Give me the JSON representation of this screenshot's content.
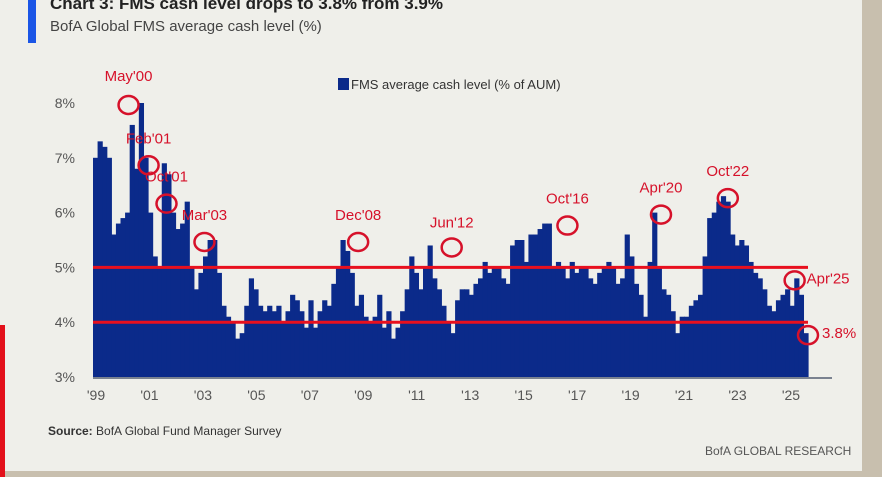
{
  "header": {
    "title": "Chart 3: FMS cash level drops to 3.8% from 3.9%",
    "subtitle": "BofA Global FMS average cash level (%)"
  },
  "footer": {
    "source_label": "Source:",
    "source_text": "BofA Global Fund Manager Survey",
    "brand": "BofA GLOBAL RESEARCH"
  },
  "colors": {
    "bar": "#0b2a8a",
    "reference_line": "#e8101e",
    "annotation": "#d6112a",
    "accent": "#1a55e6"
  },
  "chart_data": {
    "type": "bar",
    "title": "Chart 3: FMS cash level drops to 3.8% from 3.9%",
    "subtitle": "BofA Global FMS average cash level (%)",
    "xlabel": "",
    "ylabel": "",
    "ylim": [
      3,
      8.3
    ],
    "xlim": [
      1999.0,
      2025.75
    ],
    "grid": false,
    "legend": {
      "position": "top-center",
      "entries": [
        "FMS average cash level (% of AUM)"
      ]
    },
    "yticks": [
      3,
      4,
      5,
      6,
      7,
      8
    ],
    "ytick_labels": [
      "3%",
      "4%",
      "5%",
      "6%",
      "7%",
      "8%"
    ],
    "xticks": [
      1999,
      2001,
      2003,
      2005,
      2007,
      2009,
      2011,
      2013,
      2015,
      2017,
      2019,
      2021,
      2023,
      2025
    ],
    "xtick_labels": [
      "'99",
      "'01",
      "'03",
      "'05",
      "'07",
      "'09",
      "'11",
      "'13",
      "'15",
      "'17",
      "'19",
      "'21",
      "'23",
      "'25"
    ],
    "reference_lines": [
      5.0,
      4.0
    ],
    "series": [
      {
        "name": "FMS average cash level (% of AUM)",
        "start": 1999.0,
        "step_years": 0.1667,
        "values": [
          7.0,
          7.3,
          7.2,
          7.0,
          5.6,
          5.8,
          5.9,
          6.0,
          7.6,
          6.8,
          8.0,
          7.0,
          6.0,
          5.2,
          5.0,
          6.9,
          6.7,
          6.0,
          5.7,
          5.8,
          6.2,
          5.0,
          4.6,
          4.9,
          5.2,
          5.5,
          5.5,
          4.9,
          4.3,
          4.1,
          4.0,
          3.7,
          3.8,
          4.3,
          4.8,
          4.6,
          4.3,
          4.2,
          4.3,
          4.2,
          4.3,
          4.0,
          4.2,
          4.5,
          4.4,
          4.2,
          3.9,
          4.4,
          3.9,
          4.2,
          4.4,
          4.3,
          4.7,
          5.0,
          5.5,
          5.3,
          4.9,
          4.3,
          4.5,
          4.1,
          4.0,
          4.1,
          4.5,
          3.9,
          4.2,
          3.7,
          3.9,
          4.2,
          4.6,
          5.2,
          4.9,
          4.6,
          5.0,
          5.4,
          4.8,
          4.6,
          4.3,
          4.0,
          3.8,
          4.4,
          4.6,
          4.6,
          4.5,
          4.7,
          4.8,
          5.1,
          4.9,
          5.0,
          5.0,
          4.8,
          4.7,
          5.4,
          5.5,
          5.5,
          5.1,
          5.6,
          5.6,
          5.7,
          5.8,
          5.8,
          5.0,
          5.1,
          5.0,
          4.8,
          5.1,
          4.9,
          5.0,
          5.0,
          4.8,
          4.7,
          4.9,
          5.0,
          5.1,
          5.0,
          4.7,
          4.8,
          5.6,
          5.2,
          4.7,
          4.5,
          4.1,
          5.1,
          6.0,
          5.0,
          4.6,
          4.5,
          4.2,
          3.8,
          4.1,
          4.1,
          4.3,
          4.4,
          4.5,
          5.2,
          5.9,
          6.0,
          6.2,
          6.3,
          6.2,
          5.6,
          5.4,
          5.5,
          5.4,
          5.1,
          4.9,
          4.8,
          4.6,
          4.3,
          4.2,
          4.4,
          4.5,
          4.6,
          4.3,
          4.8,
          4.5,
          3.8
        ]
      }
    ],
    "annotations": [
      {
        "label": "May'00",
        "date": 2000.33,
        "value": 8.0
      },
      {
        "label": "Feb'01",
        "date": 2001.08,
        "value": 6.9
      },
      {
        "label": "Oct'01",
        "date": 2001.75,
        "value": 6.2
      },
      {
        "label": "Mar'03",
        "date": 2003.17,
        "value": 5.5
      },
      {
        "label": "Dec'08",
        "date": 2008.92,
        "value": 5.5
      },
      {
        "label": "Jun'12",
        "date": 2012.42,
        "value": 5.4
      },
      {
        "label": "Oct'16",
        "date": 2016.75,
        "value": 5.8
      },
      {
        "label": "Apr'20",
        "date": 2020.25,
        "value": 6.0
      },
      {
        "label": "Oct'22",
        "date": 2022.75,
        "value": 6.3
      },
      {
        "label": "Apr'25",
        "date": 2025.25,
        "value": 4.8
      },
      {
        "label": "3.8%",
        "date": 2025.75,
        "value": 3.8
      }
    ]
  }
}
